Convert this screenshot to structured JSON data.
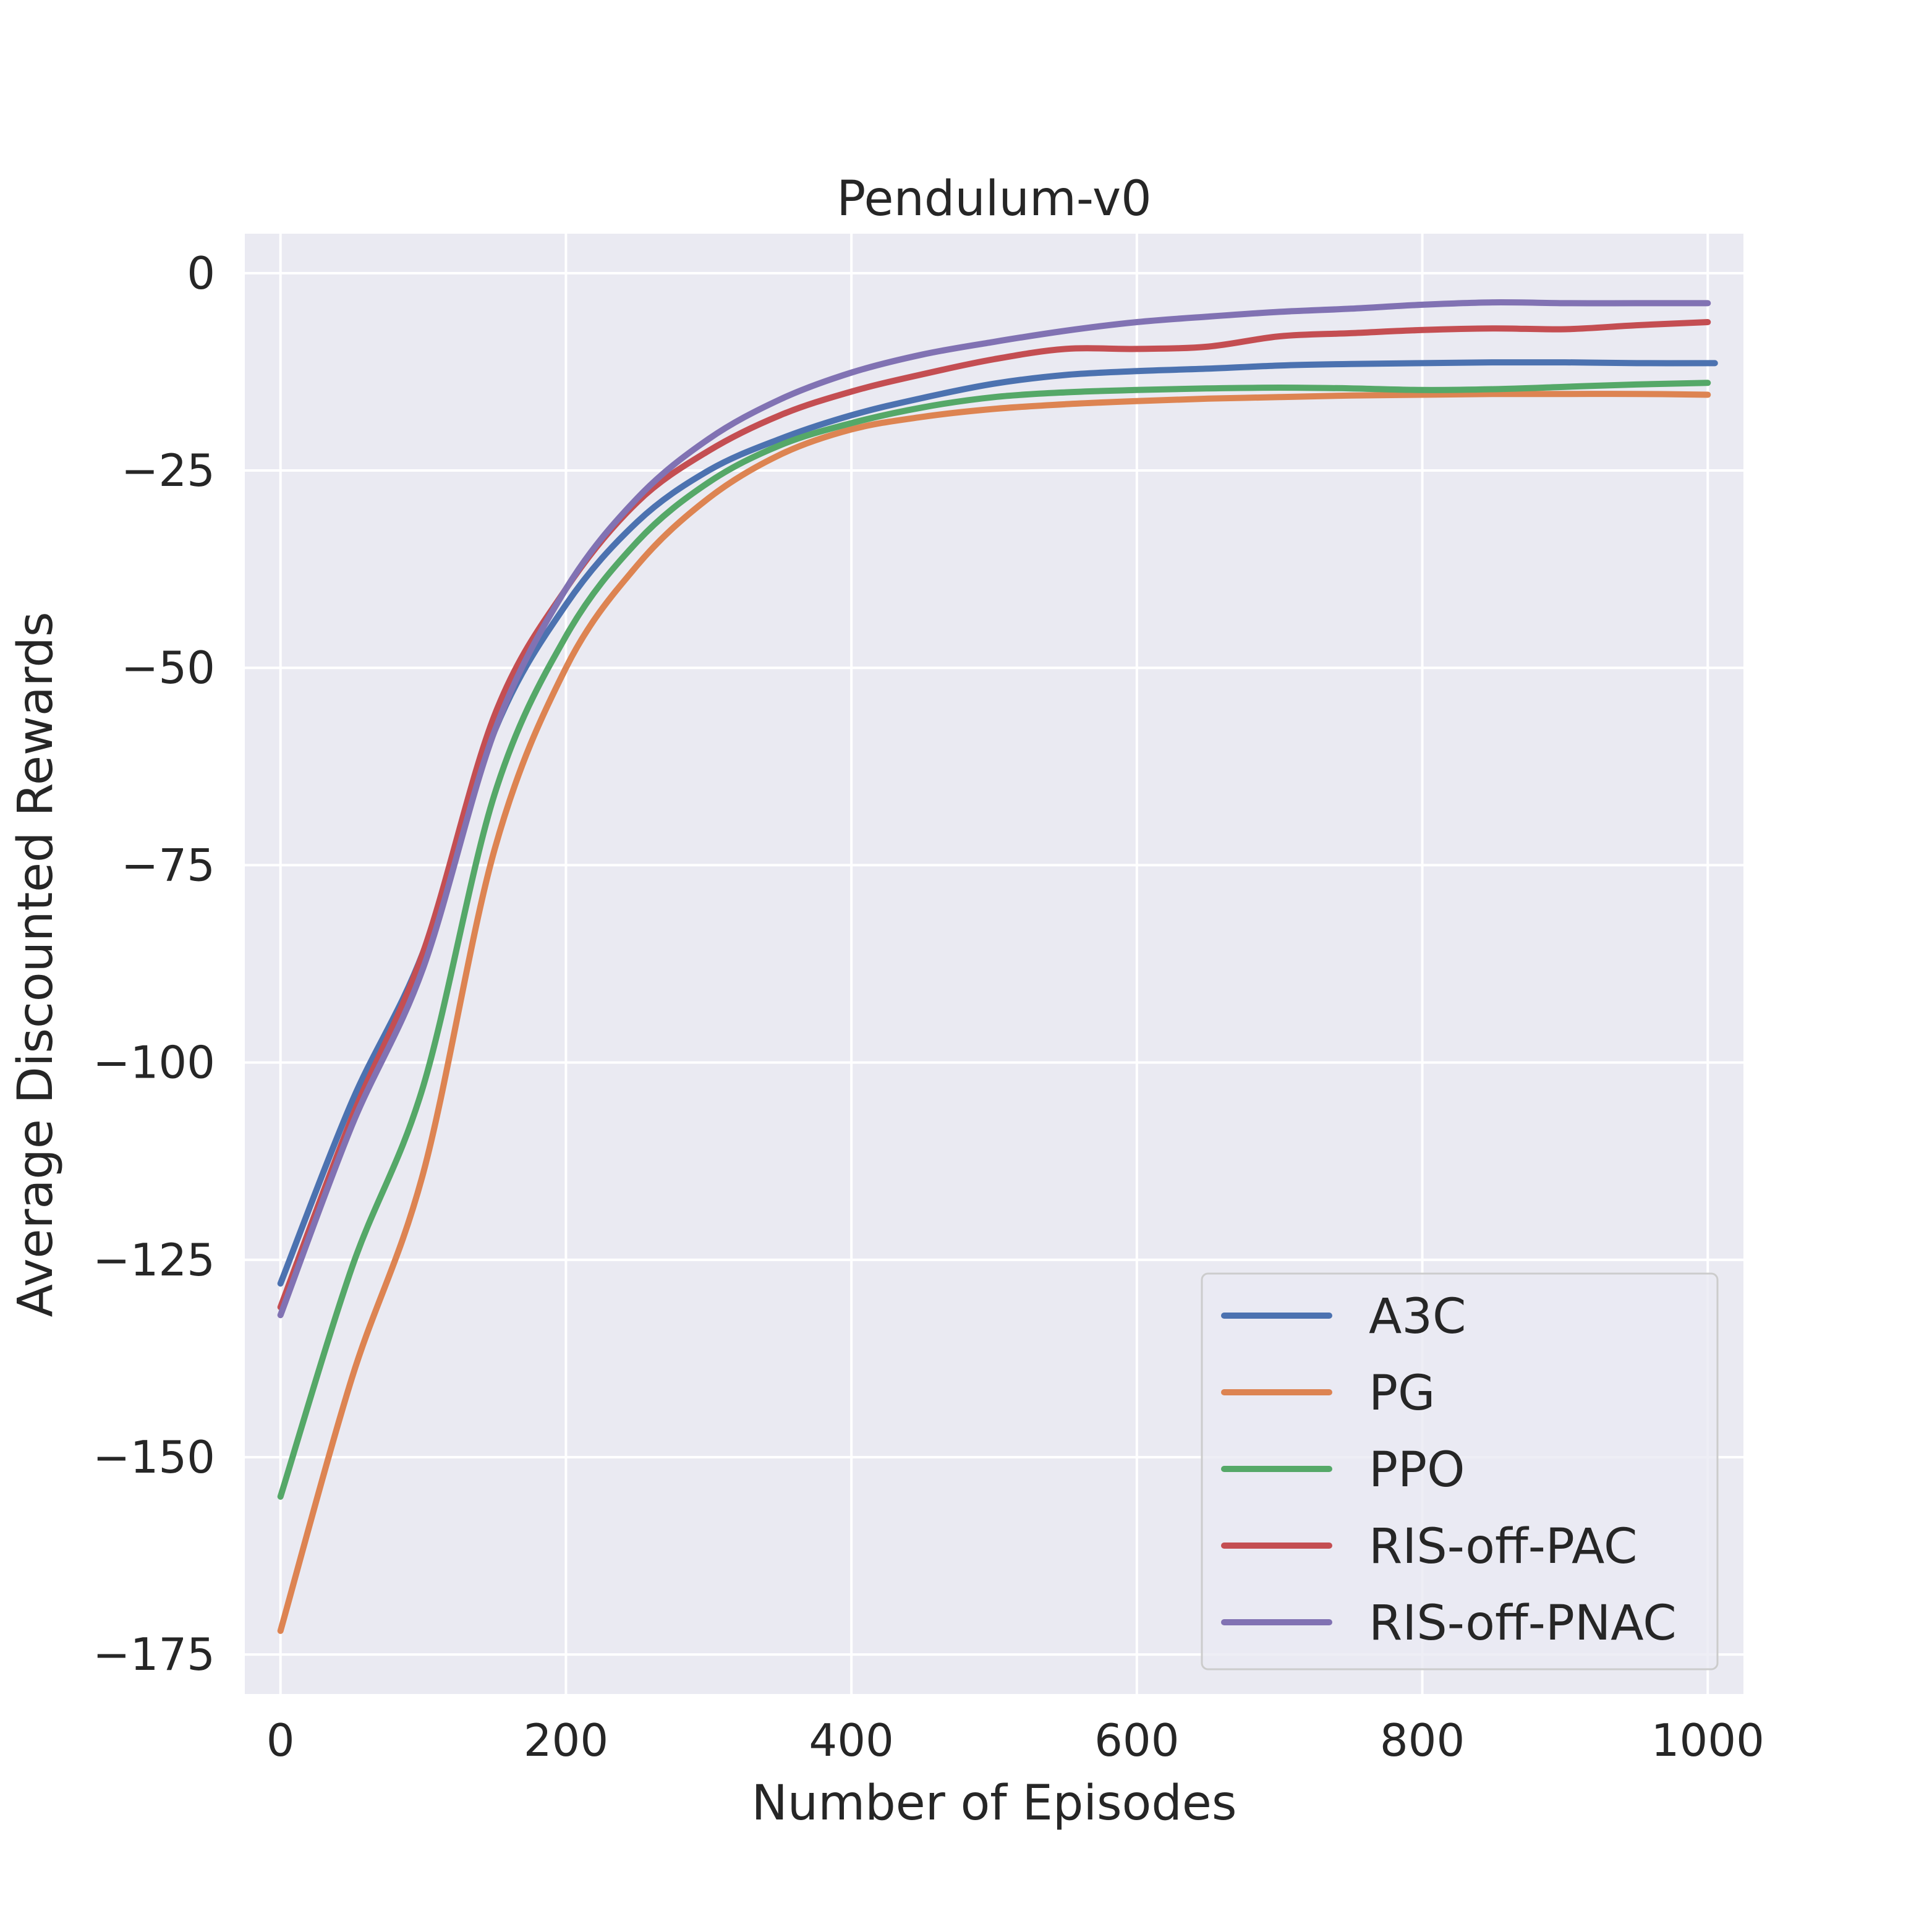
{
  "chart_data": {
    "type": "line",
    "title": "Pendulum-v0",
    "xlabel": "Number of Episodes",
    "ylabel": "Average Discounted Rewards",
    "xlim": [
      -25,
      1025
    ],
    "ylim": [
      -180,
      5
    ],
    "xticks": [
      0,
      200,
      400,
      600,
      800,
      1000
    ],
    "xtick_labels": [
      "0",
      "200",
      "400",
      "600",
      "800",
      "1000"
    ],
    "yticks": [
      0,
      -25,
      -50,
      -75,
      -100,
      -125,
      -150,
      -175
    ],
    "ytick_labels": [
      "0",
      "−25",
      "−50",
      "−75",
      "−100",
      "−125",
      "−150",
      "−175"
    ],
    "grid": true,
    "legend_position": "lower-right",
    "series": [
      {
        "name": "A3C",
        "color": "#4c72b0",
        "x": [
          0,
          50,
          100,
          150,
          200,
          250,
          300,
          350,
          400,
          450,
          500,
          550,
          600,
          650,
          700,
          750,
          800,
          850,
          900,
          950,
          1005
        ],
        "y": [
          -128,
          -105,
          -86,
          -58,
          -42,
          -31.5,
          -25,
          -21,
          -18,
          -15.8,
          -14,
          -12.9,
          -12.4,
          -12.1,
          -11.7,
          -11.5,
          -11.4,
          -11.3,
          -11.3,
          -11.4,
          -11.4
        ]
      },
      {
        "name": "PG",
        "color": "#dd8452",
        "x": [
          0,
          50,
          100,
          150,
          200,
          250,
          300,
          350,
          400,
          450,
          500,
          550,
          600,
          650,
          700,
          750,
          800,
          850,
          900,
          950,
          1000
        ],
        "y": [
          -172,
          -140,
          -114,
          -73,
          -50,
          -37,
          -28.5,
          -23,
          -19.8,
          -18.2,
          -17.2,
          -16.6,
          -16.2,
          -15.9,
          -15.7,
          -15.5,
          -15.4,
          -15.3,
          -15.3,
          -15.3,
          -15.4
        ]
      },
      {
        "name": "PPO",
        "color": "#55a868",
        "x": [
          0,
          50,
          100,
          150,
          200,
          250,
          300,
          350,
          400,
          450,
          500,
          550,
          600,
          650,
          700,
          750,
          800,
          850,
          900,
          950,
          1000
        ],
        "y": [
          -155,
          -126,
          -103,
          -66,
          -46,
          -34,
          -26.5,
          -21.8,
          -19,
          -17,
          -15.7,
          -15.1,
          -14.8,
          -14.6,
          -14.5,
          -14.6,
          -14.8,
          -14.7,
          -14.4,
          -14.1,
          -13.9
        ]
      },
      {
        "name": "RIS-off-PAC",
        "color": "#c44e52",
        "x": [
          0,
          50,
          100,
          150,
          200,
          250,
          300,
          350,
          400,
          450,
          500,
          550,
          600,
          650,
          700,
          750,
          800,
          850,
          900,
          950,
          1000
        ],
        "y": [
          -131,
          -107,
          -86,
          -56,
          -40,
          -29,
          -22.5,
          -18,
          -15,
          -12.8,
          -10.9,
          -9.6,
          -9.6,
          -9.3,
          -8,
          -7.6,
          -7.2,
          -7,
          -7.1,
          -6.6,
          -6.2
        ]
      },
      {
        "name": "RIS-off-PNAC",
        "color": "#8172b3",
        "x": [
          0,
          50,
          100,
          150,
          200,
          250,
          300,
          350,
          400,
          450,
          500,
          550,
          600,
          650,
          700,
          750,
          800,
          850,
          900,
          950,
          1000
        ],
        "y": [
          -132,
          -108,
          -88,
          -58,
          -40,
          -28.5,
          -21,
          -16,
          -12.6,
          -10.3,
          -8.7,
          -7.3,
          -6.2,
          -5.5,
          -4.9,
          -4.5,
          -4,
          -3.7,
          -3.8,
          -3.8,
          -3.8
        ]
      }
    ]
  }
}
